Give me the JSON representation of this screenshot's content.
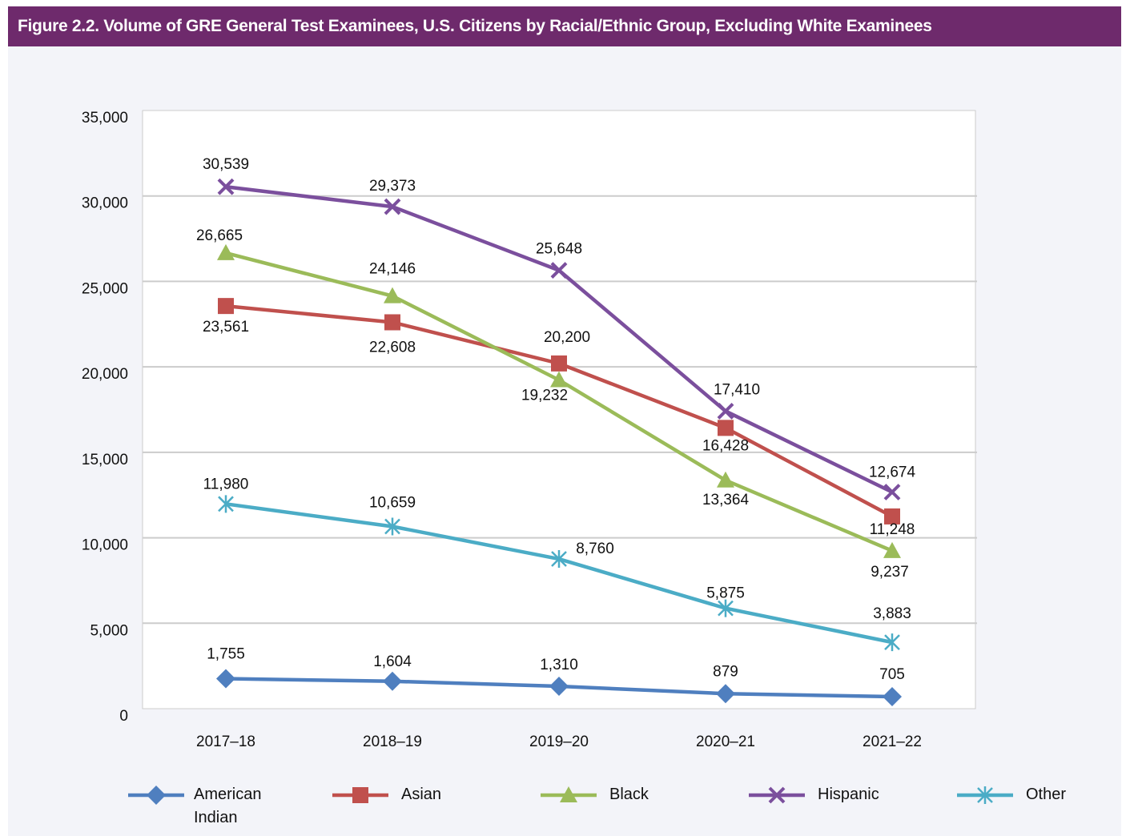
{
  "chart_data": {
    "type": "line",
    "title": "Figure 2.2. Volume of GRE General Test Examinees, U.S. Citizens by Racial/Ethnic Group, Excluding White Examinees",
    "categories": [
      "2017–18",
      "2018–19",
      "2019–20",
      "2020–21",
      "2021–22"
    ],
    "series": [
      {
        "name": "American Indian",
        "color": "#4f7fbf",
        "marker": "diamond",
        "values": [
          1755,
          1604,
          1310,
          879,
          705
        ],
        "value_labels": [
          "1,755",
          "1,604",
          "1,310",
          "879",
          "705"
        ]
      },
      {
        "name": "Asian",
        "color": "#c0504d",
        "marker": "square",
        "values": [
          23561,
          22608,
          20200,
          16428,
          11248
        ],
        "value_labels": [
          "23,561",
          "22,608",
          "20,200",
          "16,428",
          "11,248"
        ]
      },
      {
        "name": "Black",
        "color": "#9bbb59",
        "marker": "triangle",
        "values": [
          26665,
          24146,
          19232,
          13364,
          9237
        ],
        "value_labels": [
          "26,665",
          "24,146",
          "19,232",
          "13,364",
          "9,237"
        ]
      },
      {
        "name": "Hispanic",
        "color": "#7b4f9d",
        "marker": "x",
        "values": [
          30539,
          29373,
          25648,
          17410,
          12674
        ],
        "value_labels": [
          "30,539",
          "29,373",
          "25,648",
          "17,410",
          "12,674"
        ]
      },
      {
        "name": "Other",
        "color": "#4bacc6",
        "marker": "star",
        "values": [
          11980,
          10659,
          8760,
          5875,
          3883
        ],
        "value_labels": [
          "11,980",
          "10,659",
          "8,760",
          "5,875",
          "3,883"
        ]
      }
    ],
    "ylim": [
      0,
      35000
    ],
    "yticks": [
      0,
      {
        "value": 5000,
        "label": "5,000"
      },
      {
        "value": 10000,
        "label": "10,000"
      },
      {
        "value": 15000,
        "label": "15,000"
      },
      {
        "value": 20000,
        "label": "20,000"
      },
      {
        "value": 25000,
        "label": "25,000"
      },
      {
        "value": 30000,
        "label": "30,000"
      },
      {
        "value": 35000,
        "label": "35,000"
      }
    ],
    "grid": true
  }
}
